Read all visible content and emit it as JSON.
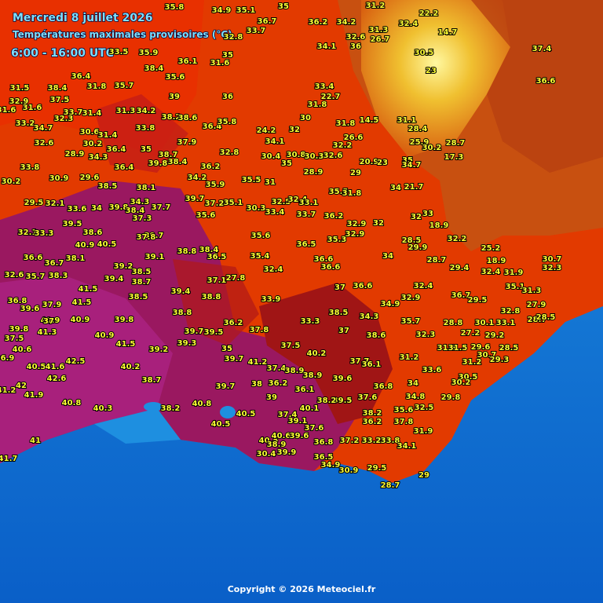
{
  "header": {
    "date": "Mercredi 8 juillet 2026",
    "subtitle": "Températures maximales provisoires (°C)",
    "period": "6:00 - 16:00 UTC"
  },
  "footer": {
    "copyright": "Copyright © 2026 Meteociel.fr"
  },
  "stations": [
    31.2,
    37.4,
    36.6,
    23,
    30.5,
    14.7,
    22.2,
    32.4,
    31.3,
    26.7,
    32.6,
    36,
    34.2,
    36.2,
    34.1,
    35,
    36.7,
    35.1,
    34.9,
    32.8,
    33.7,
    35,
    31.6,
    36.1,
    35.8,
    38.4,
    35.6,
    35.9,
    33.5,
    36.4,
    31.8,
    38.4,
    37.5,
    31.5,
    32.9,
    33.2,
    34.7,
    32.6,
    33.7,
    32.3,
    31.4,
    31.3,
    34.2,
    35.7,
    39,
    36,
    38.2,
    38.6,
    33.8,
    36.4,
    35.8,
    30.6,
    31.4,
    30.2,
    36.4,
    35,
    38.7,
    37.9,
    28.9,
    34.3,
    36.4,
    39.8,
    38.4,
    36.2,
    32.8,
    30.4,
    30.8,
    30.3,
    32.6,
    32.2,
    26.6,
    14.5,
    31.1,
    28.4,
    25.9,
    30.2,
    28.7,
    17.3,
    35,
    34.7,
    20.9,
    29,
    23,
    28.9,
    35,
    24.2,
    34.1,
    32,
    30,
    31.8,
    33.4,
    22.7,
    31.8,
    31.6,
    31.6,
    33.8,
    30.2,
    30.9,
    29.6,
    38.5,
    38.1,
    34.2,
    35.9,
    35.5,
    31,
    39.7,
    37.2,
    35.1,
    35.6,
    30.3,
    33.4,
    32.5,
    32.4,
    33.1,
    33.7,
    36.2,
    35.5,
    31.8,
    34,
    21.7,
    33,
    32,
    18.9,
    29.5,
    32.1,
    33.6,
    34,
    39.8,
    38.4,
    34.3,
    37.7,
    37.3,
    39.5,
    38.6,
    32.1,
    33.3,
    36.6,
    36.7,
    38.1,
    40.5,
    40.9,
    39.7,
    37.8,
    39.1,
    39.2,
    38.8,
    38.4,
    36.5,
    35.6,
    35.4,
    36.5,
    35.3,
    32.9,
    32.9,
    32,
    34,
    28.5,
    29.9,
    32.2,
    25.2,
    28.7,
    18.9,
    30.7,
    32.3,
    29.4,
    32.4,
    31.9,
    36.6,
    36.6,
    32.4,
    38.5,
    37.1,
    27.8,
    32.6,
    35.7,
    38.3,
    39.4,
    41.5,
    38.7,
    39.4,
    38.8,
    38.5,
    33.9,
    37,
    36.6,
    34.9,
    32.9,
    32.4,
    36.7,
    29.5,
    35.1,
    31.3,
    27.9,
    36.8,
    37.9,
    39.6,
    41.5,
    40.9,
    40.9,
    39.8,
    38.8,
    37,
    39.8,
    37.5,
    41.3,
    40.9,
    41.5,
    40.6,
    36.9,
    39.2,
    39.3,
    39.7,
    39.5,
    36.2,
    35,
    37.8,
    33.3,
    38.5,
    34.3,
    35.7,
    28.8,
    30.1,
    32.8,
    33.1,
    28.7,
    28.5,
    32.3,
    27.2,
    29.2,
    37,
    38.6,
    31.3,
    31.5,
    28.5,
    29.6,
    30.7,
    29.3,
    37.5,
    40.2,
    37.7,
    36.1,
    31.2,
    33.6,
    31.2,
    30.5,
    30.2,
    40.5,
    42.5,
    41.6,
    40.2,
    38.7,
    39.7,
    41.2,
    37.4,
    38.9,
    38.9,
    39.6,
    42.6,
    41.2,
    42,
    41.9,
    40.8,
    40.3,
    39.7,
    38,
    36.2,
    36.1,
    36.8,
    34,
    39.5,
    38.2,
    39,
    37.6,
    34.8,
    32.5,
    29.8,
    38.2,
    40.8,
    40.5,
    40.1,
    38.2,
    35.6,
    36.2,
    37.8,
    40.5,
    37.4,
    39.1,
    37.6,
    31.9,
    41,
    40.5,
    40.6,
    39.6,
    36.8,
    37.2,
    33.2,
    33.8,
    34.1,
    38.9,
    30.4,
    39.9,
    36.5,
    34.9,
    30.9,
    29.5,
    29,
    28.7,
    41.7
  ]
}
